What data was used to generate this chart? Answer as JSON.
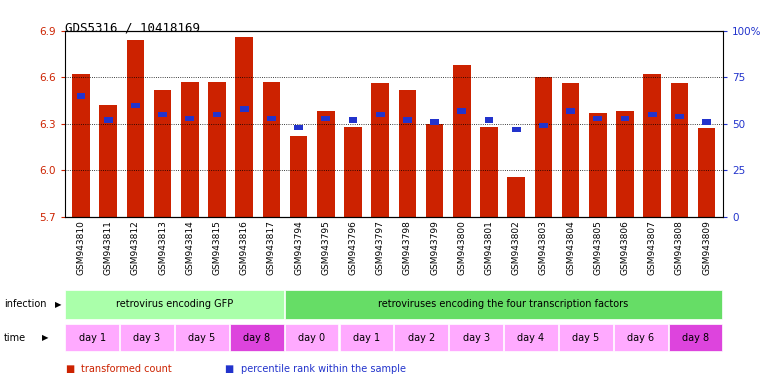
{
  "title": "GDS5316 / 10418169",
  "samples": [
    "GSM943810",
    "GSM943811",
    "GSM943812",
    "GSM943813",
    "GSM943814",
    "GSM943815",
    "GSM943816",
    "GSM943817",
    "GSM943794",
    "GSM943795",
    "GSM943796",
    "GSM943797",
    "GSM943798",
    "GSM943799",
    "GSM943800",
    "GSM943801",
    "GSM943802",
    "GSM943803",
    "GSM943804",
    "GSM943805",
    "GSM943806",
    "GSM943807",
    "GSM943808",
    "GSM943809"
  ],
  "red_values": [
    6.62,
    6.42,
    6.84,
    6.52,
    6.57,
    6.57,
    6.86,
    6.57,
    6.22,
    6.38,
    6.28,
    6.56,
    6.52,
    6.3,
    6.68,
    6.28,
    5.96,
    6.6,
    6.56,
    6.37,
    6.38,
    6.62,
    6.56,
    6.27
  ],
  "blue_values": [
    65,
    52,
    60,
    55,
    53,
    55,
    58,
    53,
    48,
    53,
    52,
    55,
    52,
    51,
    57,
    52,
    47,
    49,
    57,
    53,
    53,
    55,
    54,
    51
  ],
  "ymin": 5.7,
  "ymax": 6.9,
  "yticks": [
    5.7,
    6.0,
    6.3,
    6.6,
    6.9
  ],
  "right_yticks": [
    0,
    25,
    50,
    75,
    100
  ],
  "right_yticklabels": [
    "0",
    "25",
    "50",
    "75",
    "100%"
  ],
  "bar_color": "#cc2200",
  "blue_color": "#2233cc",
  "infection_groups": [
    {
      "label": "retrovirus encoding GFP",
      "start": 0,
      "end": 8,
      "color": "#aaffaa"
    },
    {
      "label": "retroviruses encoding the four transcription factors",
      "start": 8,
      "end": 24,
      "color": "#66dd66"
    }
  ],
  "time_groups": [
    {
      "label": "day 1",
      "start": 0,
      "end": 2,
      "color": "#ffaaff"
    },
    {
      "label": "day 3",
      "start": 2,
      "end": 4,
      "color": "#ffaaff"
    },
    {
      "label": "day 5",
      "start": 4,
      "end": 6,
      "color": "#ffaaff"
    },
    {
      "label": "day 8",
      "start": 6,
      "end": 8,
      "color": "#dd44dd"
    },
    {
      "label": "day 0",
      "start": 8,
      "end": 10,
      "color": "#ffaaff"
    },
    {
      "label": "day 1",
      "start": 10,
      "end": 12,
      "color": "#ffaaff"
    },
    {
      "label": "day 2",
      "start": 12,
      "end": 14,
      "color": "#ffaaff"
    },
    {
      "label": "day 3",
      "start": 14,
      "end": 16,
      "color": "#ffaaff"
    },
    {
      "label": "day 4",
      "start": 16,
      "end": 18,
      "color": "#ffaaff"
    },
    {
      "label": "day 5",
      "start": 18,
      "end": 20,
      "color": "#ffaaff"
    },
    {
      "label": "day 6",
      "start": 20,
      "end": 22,
      "color": "#ffaaff"
    },
    {
      "label": "day 8",
      "start": 22,
      "end": 24,
      "color": "#dd44dd"
    }
  ],
  "legend_items": [
    {
      "label": "transformed count",
      "color": "#cc2200"
    },
    {
      "label": "percentile rank within the sample",
      "color": "#2233cc"
    }
  ]
}
